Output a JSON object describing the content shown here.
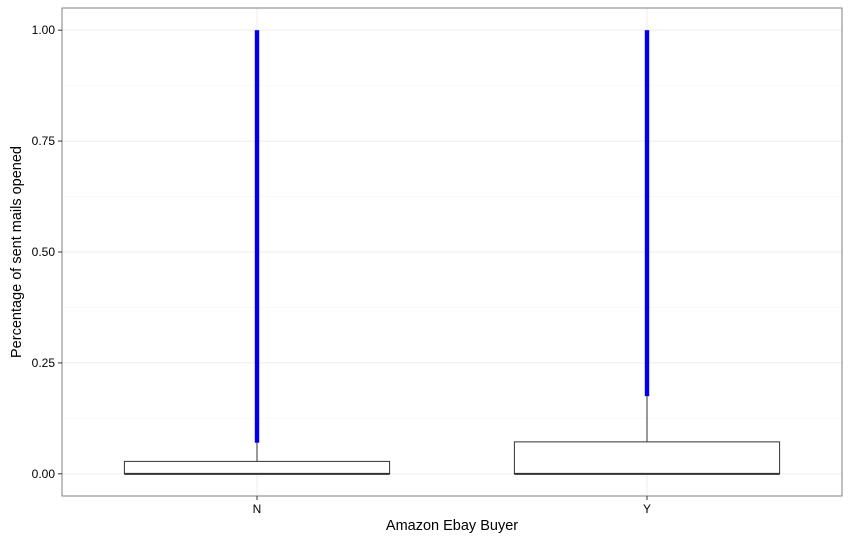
{
  "chart_data": {
    "type": "box",
    "title": "",
    "xlabel": "Amazon Ebay Buyer",
    "ylabel": "Percentage of sent mails opened",
    "categories": [
      "N",
      "Y"
    ],
    "ylim": [
      -0.05,
      1.05
    ],
    "yticks": [
      0.0,
      0.25,
      0.5,
      0.75,
      1.0
    ],
    "ytick_labels": [
      "0.00",
      "0.25",
      "0.50",
      "0.75",
      "1.00"
    ],
    "grid": true,
    "outlier_color": "#0000ee",
    "boxes": [
      {
        "category": "N",
        "min": 0.0,
        "q1": 0.0,
        "median": 0.0,
        "q3": 0.028,
        "whisker_high": 0.07,
        "outliers_from": 0.07,
        "outliers_to": 1.0
      },
      {
        "category": "Y",
        "min": 0.0,
        "q1": 0.0,
        "median": 0.0,
        "q3": 0.072,
        "whisker_high": 0.175,
        "outliers_from": 0.175,
        "outliers_to": 1.0
      }
    ]
  }
}
